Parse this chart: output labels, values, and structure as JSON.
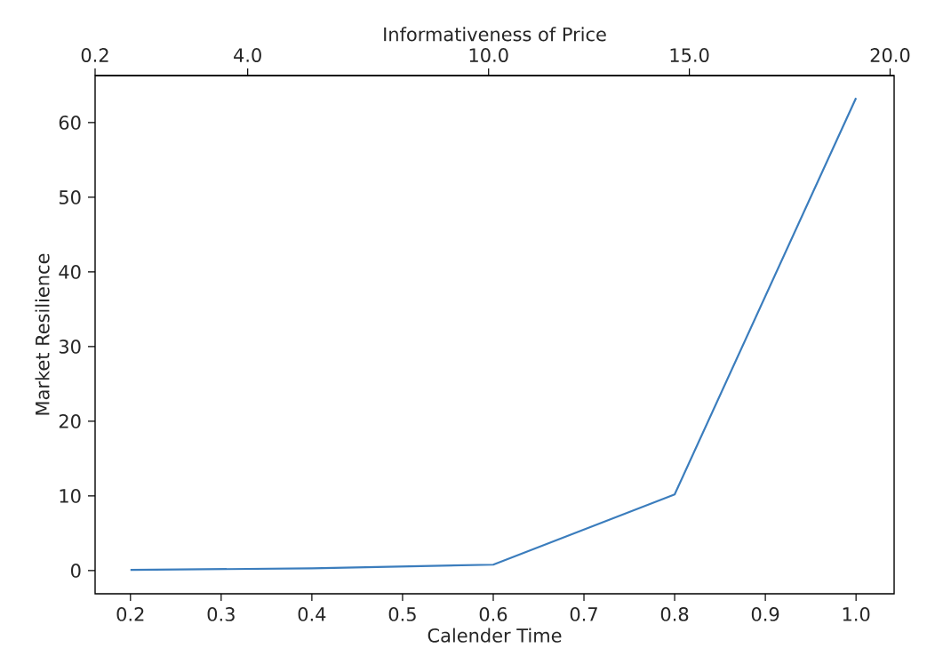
{
  "chart_data": {
    "type": "line",
    "xlabel": "Calender Time",
    "ylabel": "Market Resilience",
    "x2label": "Informativeness of Price",
    "x": [
      0.2,
      0.4,
      0.6,
      0.8,
      1.0
    ],
    "values": [
      0.1,
      0.3,
      0.8,
      10.2,
      63.3
    ],
    "color": "#3b7dbd",
    "marker": "none",
    "line_style": "solid",
    "xlim": [
      0.161,
      1.042
    ],
    "ylim": [
      -3.1,
      66.3
    ],
    "xticks": [
      0.2,
      0.3,
      0.4,
      0.5,
      0.6,
      0.7,
      0.8,
      0.9,
      {
        "value": 1.0,
        "label": "1.0"
      }
    ],
    "yticks": [
      0,
      10,
      20,
      30,
      40,
      50,
      60
    ],
    "x2lim": [
      0.2,
      20.1
    ],
    "x2ticks": [
      0.2,
      {
        "value": 4,
        "label": "4.0"
      },
      {
        "value": 10,
        "label": "10.0"
      },
      {
        "value": 15,
        "label": "15.0"
      },
      {
        "value": 20,
        "label": "20.0"
      }
    ]
  }
}
